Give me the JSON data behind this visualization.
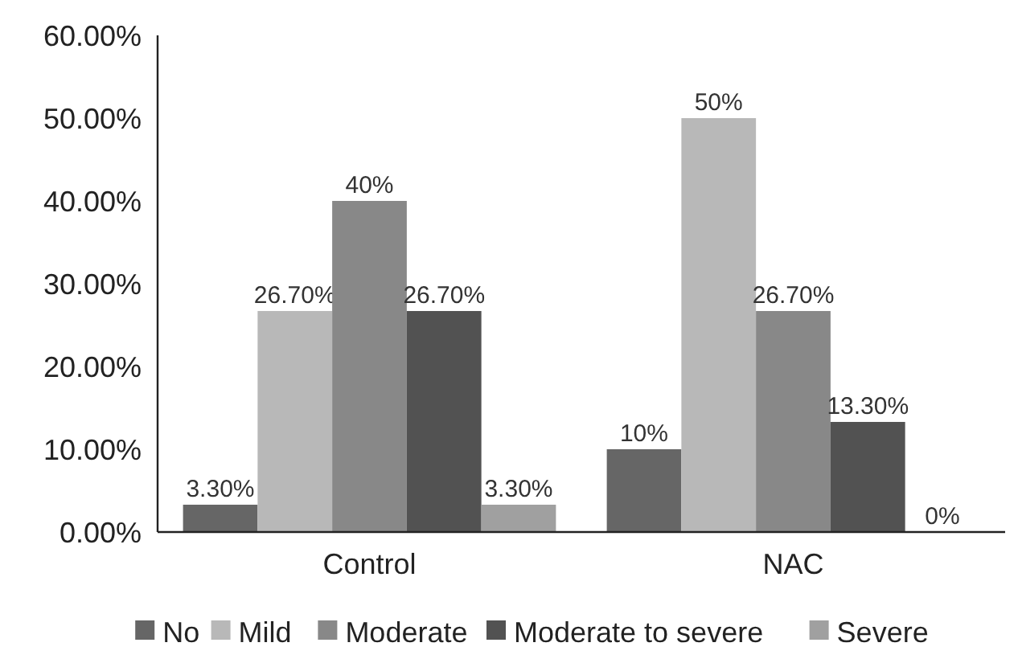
{
  "chart_data": {
    "type": "bar",
    "categories": [
      "Control",
      "NAC"
    ],
    "ylim": [
      0,
      60
    ],
    "yticks": [
      {
        "value": 0,
        "label": "0.00%"
      },
      {
        "value": 10,
        "label": "10.00%"
      },
      {
        "value": 20,
        "label": "20.00%"
      },
      {
        "value": 30,
        "label": "30.00%"
      },
      {
        "value": 40,
        "label": "40.00%"
      },
      {
        "value": 50,
        "label": "50.00%"
      },
      {
        "value": 60,
        "label": "60.00%"
      }
    ],
    "series": [
      {
        "name": "No",
        "color": "#666666",
        "values": [
          3.3,
          10
        ],
        "value_labels": [
          "3.30%",
          "10%"
        ]
      },
      {
        "name": "Mild",
        "color": "#b8b8b8",
        "values": [
          26.7,
          50
        ],
        "value_labels": [
          "26.70%",
          "50%"
        ]
      },
      {
        "name": "Moderate",
        "color": "#888888",
        "values": [
          40,
          26.7
        ],
        "value_labels": [
          "40%",
          "26.70%"
        ]
      },
      {
        "name": "Moderate to severe",
        "color": "#525252",
        "values": [
          26.7,
          13.3
        ],
        "value_labels": [
          "26.70%",
          "13.30%"
        ]
      },
      {
        "name": "Severe",
        "color": "#a0a0a0",
        "values": [
          3.3,
          0
        ],
        "value_labels": [
          "3.30%",
          "0%"
        ]
      }
    ],
    "grid": false,
    "legend": "bottom"
  }
}
